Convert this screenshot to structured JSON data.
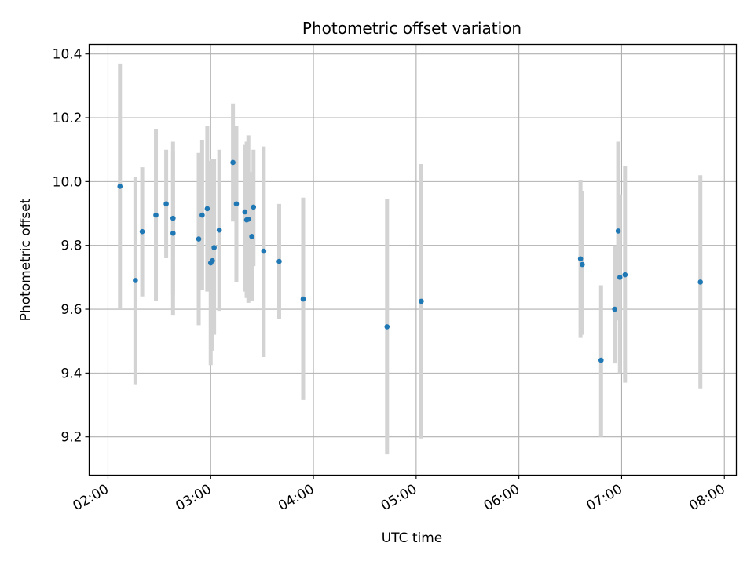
{
  "chart_data": {
    "type": "scatter",
    "title": "Photometric offset variation",
    "xlabel": "UTC time",
    "ylabel": "Photometric offset",
    "x_axis_type": "time",
    "x_ticks": [
      "02:00",
      "03:00",
      "04:00",
      "05:00",
      "06:00",
      "07:00",
      "08:00"
    ],
    "x_tick_minutes": [
      120,
      180,
      240,
      300,
      360,
      420,
      480
    ],
    "y_ticks": [
      9.2,
      9.4,
      9.6,
      9.8,
      10.0,
      10.2,
      10.4
    ],
    "xlim": [
      "01:49",
      "08:07"
    ],
    "ylim": [
      9.08,
      10.43
    ],
    "grid": true,
    "colors": {
      "point": "#1f77b4",
      "errorbar": "#d3d3d3",
      "grid": "#b0b0b0"
    },
    "points": [
      {
        "time": "02:07",
        "y": 9.985,
        "err_low": 9.6,
        "err_high": 10.37
      },
      {
        "time": "02:16",
        "y": 9.69,
        "err_low": 9.365,
        "err_high": 10.015
      },
      {
        "time": "02:20",
        "y": 9.843,
        "err_low": 9.64,
        "err_high": 10.045
      },
      {
        "time": "02:28",
        "y": 9.895,
        "err_low": 9.625,
        "err_high": 10.165
      },
      {
        "time": "02:34",
        "y": 9.93,
        "err_low": 9.76,
        "err_high": 10.1
      },
      {
        "time": "02:38",
        "y": 9.885,
        "err_low": 9.645,
        "err_high": 10.125
      },
      {
        "time": "02:38",
        "y": 9.838,
        "err_low": 9.58,
        "err_high": 10.095
      },
      {
        "time": "02:53",
        "y": 9.82,
        "err_low": 9.55,
        "err_high": 10.09
      },
      {
        "time": "02:55",
        "y": 9.895,
        "err_low": 9.66,
        "err_high": 10.13
      },
      {
        "time": "02:58",
        "y": 9.915,
        "err_low": 9.655,
        "err_high": 10.175
      },
      {
        "time": "03:00",
        "y": 9.745,
        "err_low": 9.425,
        "err_high": 10.065
      },
      {
        "time": "03:01",
        "y": 9.752,
        "err_low": 9.47,
        "err_high": 10.07
      },
      {
        "time": "03:02",
        "y": 9.793,
        "err_low": 9.52,
        "err_high": 10.07
      },
      {
        "time": "03:05",
        "y": 9.848,
        "err_low": 9.595,
        "err_high": 10.1
      },
      {
        "time": "03:13",
        "y": 10.06,
        "err_low": 9.875,
        "err_high": 10.245
      },
      {
        "time": "03:15",
        "y": 9.93,
        "err_low": 9.685,
        "err_high": 10.175
      },
      {
        "time": "03:20",
        "y": 9.905,
        "err_low": 9.655,
        "err_high": 10.115
      },
      {
        "time": "03:21",
        "y": 9.88,
        "err_low": 9.635,
        "err_high": 10.125
      },
      {
        "time": "03:22",
        "y": 9.882,
        "err_low": 9.62,
        "err_high": 10.145
      },
      {
        "time": "03:24",
        "y": 9.828,
        "err_low": 9.625,
        "err_high": 10.03
      },
      {
        "time": "03:25",
        "y": 9.92,
        "err_low": 9.735,
        "err_high": 10.1
      },
      {
        "time": "03:31",
        "y": 9.782,
        "err_low": 9.45,
        "err_high": 10.11
      },
      {
        "time": "03:40",
        "y": 9.75,
        "err_low": 9.57,
        "err_high": 9.93
      },
      {
        "time": "03:54",
        "y": 9.632,
        "err_low": 9.315,
        "err_high": 9.95
      },
      {
        "time": "04:43",
        "y": 9.545,
        "err_low": 9.145,
        "err_high": 9.945
      },
      {
        "time": "05:03",
        "y": 9.625,
        "err_low": 9.195,
        "err_high": 10.055
      },
      {
        "time": "06:36",
        "y": 9.758,
        "err_low": 9.51,
        "err_high": 10.005
      },
      {
        "time": "06:37",
        "y": 9.74,
        "err_low": 9.52,
        "err_high": 9.97
      },
      {
        "time": "06:48",
        "y": 9.44,
        "err_low": 9.2,
        "err_high": 9.675
      },
      {
        "time": "06:56",
        "y": 9.6,
        "err_low": 9.43,
        "err_high": 9.8
      },
      {
        "time": "06:58",
        "y": 9.845,
        "err_low": 9.565,
        "err_high": 10.125
      },
      {
        "time": "06:59",
        "y": 9.7,
        "err_low": 9.4,
        "err_high": 9.96
      },
      {
        "time": "07:02",
        "y": 9.708,
        "err_low": 9.37,
        "err_high": 10.05
      },
      {
        "time": "07:46",
        "y": 9.685,
        "err_low": 9.35,
        "err_high": 10.02
      }
    ]
  }
}
